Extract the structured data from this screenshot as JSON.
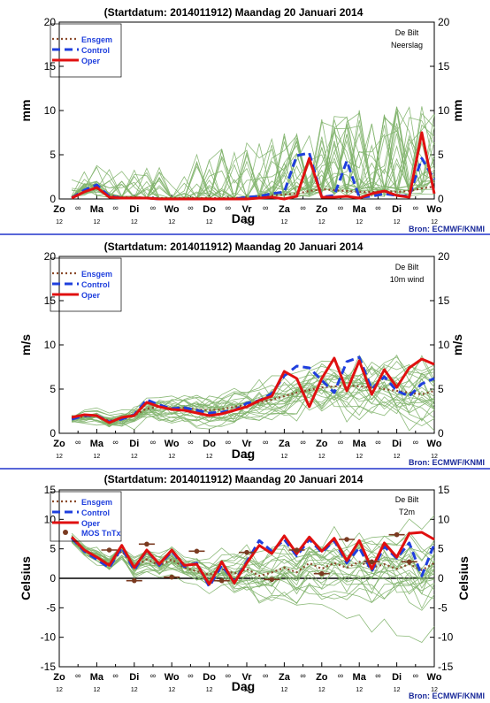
{
  "page": {
    "date_label": "(Startdatum: 2014011912)   Maandag   20 Januari   2014"
  },
  "chart_data": [
    {
      "type": "line",
      "title": "(Startdatum: 2014011912)   Maandag   20 Januari   2014",
      "location": "De Bilt",
      "variable": "Neerslag",
      "ylabel": "mm",
      "xlabel": "Dag",
      "source": "Bron: ECMWF/KNMI",
      "ylim": [
        0,
        20
      ],
      "yticks": [
        0,
        5,
        10,
        15,
        20
      ],
      "xlim": [
        0,
        15
      ],
      "day_labels": [
        "Zo",
        "Ma",
        "Di",
        "Wo",
        "Do",
        "Vr",
        "Za",
        "Zo",
        "Ma",
        "Di",
        "Wo"
      ],
      "hour_labels": [
        "12",
        "12",
        "12",
        "12",
        "12",
        "12",
        "12",
        "12",
        "12",
        "12",
        "12"
      ],
      "x": [
        0.5,
        1,
        1.5,
        2,
        2.5,
        3,
        3.5,
        4,
        4.5,
        5,
        5.5,
        6,
        6.5,
        7,
        7.5,
        8,
        8.5,
        9,
        9.5,
        10,
        10.5,
        11,
        11.5,
        12,
        12.5,
        13,
        13.5,
        14,
        14.5,
        15
      ],
      "legend": [
        "Ensgem",
        "Control",
        "Oper"
      ],
      "colors": {
        "ensgem": "#8b4a2b",
        "control": "#1f3fdd",
        "oper": "#e01010",
        "members": "#7fb36a"
      },
      "series": [
        {
          "name": "Ensgem",
          "values": [
            0.2,
            0.8,
            1.2,
            0.4,
            0.2,
            0.2,
            0.1,
            0.1,
            0.1,
            0.1,
            0.1,
            0.1,
            0.1,
            0.1,
            0.2,
            0.3,
            0.4,
            0.5,
            0.6,
            0.9,
            1.1,
            1.0,
            0.9,
            0.8,
            0.8,
            0.9,
            0.8,
            0.9,
            1.2,
            1.4
          ]
        },
        {
          "name": "Control",
          "values": [
            0.1,
            1.0,
            1.6,
            0.3,
            0.1,
            0.1,
            0.1,
            0.0,
            0.0,
            0.0,
            0.0,
            0.0,
            0.0,
            0.0,
            0.2,
            0.3,
            0.6,
            0.8,
            4.9,
            5.2,
            0.2,
            0.4,
            4.3,
            0.2,
            0.3,
            0.6,
            0.4,
            0.3,
            4.6,
            2.2
          ]
        },
        {
          "name": "Oper",
          "values": [
            0.1,
            0.8,
            1.3,
            0.2,
            0.1,
            0.1,
            0.1,
            0.0,
            0.0,
            0.0,
            0.0,
            0.0,
            0.0,
            0.0,
            0.0,
            0.1,
            0.2,
            0.0,
            0.3,
            4.6,
            0.2,
            0.2,
            0.3,
            0.1,
            0.6,
            0.9,
            0.4,
            0.2,
            7.5,
            0.6
          ]
        }
      ]
    },
    {
      "type": "line",
      "title": "(Startdatum: 2014011912)   Maandag   20 Januari   2014",
      "location": "De Bilt",
      "variable": "10m wind",
      "ylabel": "m/s",
      "xlabel": "Dag",
      "source": "Bron: ECMWF/KNMI",
      "ylim": [
        0,
        20
      ],
      "yticks": [
        0,
        5,
        10,
        15,
        20
      ],
      "xlim": [
        0,
        15
      ],
      "day_labels": [
        "Zo",
        "Ma",
        "Di",
        "Wo",
        "Do",
        "Vr",
        "Za",
        "Zo",
        "Ma",
        "Di",
        "Wo"
      ],
      "hour_labels": [
        "12",
        "12",
        "12",
        "12",
        "12",
        "12",
        "12",
        "12",
        "12",
        "12",
        "12"
      ],
      "x": [
        0.5,
        1,
        1.5,
        2,
        2.5,
        3,
        3.5,
        4,
        4.5,
        5,
        5.5,
        6,
        6.5,
        7,
        7.5,
        8,
        8.5,
        9,
        9.5,
        10,
        10.5,
        11,
        11.5,
        12,
        12.5,
        13,
        13.5,
        14,
        14.5,
        15
      ],
      "legend": [
        "Ensgem",
        "Control",
        "Oper"
      ],
      "colors": {
        "ensgem": "#8b4a2b",
        "control": "#1f3fdd",
        "oper": "#e01010",
        "members": "#7fb36a"
      },
      "series": [
        {
          "name": "Ensgem",
          "values": [
            1.7,
            1.9,
            2.0,
            1.4,
            1.7,
            2.0,
            2.8,
            3.0,
            2.8,
            2.9,
            2.7,
            2.6,
            2.7,
            3.0,
            3.2,
            3.5,
            3.8,
            4.2,
            4.6,
            4.9,
            5.2,
            5.3,
            5.4,
            5.3,
            5.2,
            5.0,
            4.8,
            4.6,
            4.4,
            4.8
          ]
        },
        {
          "name": "Control",
          "values": [
            1.6,
            2.0,
            2.0,
            1.3,
            1.6,
            2.1,
            3.8,
            3.2,
            2.8,
            2.9,
            2.6,
            2.3,
            2.4,
            2.6,
            3.4,
            3.7,
            4.5,
            6.5,
            7.6,
            7.4,
            6.0,
            4.6,
            8.1,
            8.6,
            5.0,
            6.4,
            4.8,
            4.2,
            5.6,
            6.2
          ]
        },
        {
          "name": "Oper",
          "values": [
            1.8,
            2.1,
            2.0,
            1.2,
            1.8,
            2.0,
            3.5,
            3.0,
            2.7,
            2.6,
            2.3,
            2.0,
            2.2,
            2.6,
            3.0,
            3.7,
            4.2,
            7.0,
            6.2,
            3.0,
            6.2,
            8.5,
            4.8,
            8.2,
            4.4,
            7.2,
            5.2,
            7.4,
            8.4,
            7.8
          ]
        }
      ]
    },
    {
      "type": "line",
      "title": "(Startdatum: 2014011912)   Maandag   20 Januari   2014",
      "location": "De Bilt",
      "variable": "T2m",
      "ylabel": "Celsius",
      "xlabel": "Dag",
      "source": "Bron: ECMWF/KNMI",
      "ylim": [
        -15,
        15
      ],
      "yticks": [
        -15,
        -10,
        -5,
        0,
        5,
        10,
        15
      ],
      "xlim": [
        0,
        15
      ],
      "day_labels": [
        "Zo",
        "Ma",
        "Di",
        "Wo",
        "Do",
        "Vr",
        "Za",
        "Zo",
        "Ma",
        "Di",
        "Wo"
      ],
      "hour_labels": [
        "12",
        "12",
        "12",
        "12",
        "12",
        "12",
        "12",
        "12",
        "12",
        "12",
        "12"
      ],
      "x": [
        0.5,
        1,
        1.5,
        2,
        2.5,
        3,
        3.5,
        4,
        4.5,
        5,
        5.5,
        6,
        6.5,
        7,
        7.5,
        8,
        8.5,
        9,
        9.5,
        10,
        10.5,
        11,
        11.5,
        12,
        12.5,
        13,
        13.5,
        14,
        14.5,
        15
      ],
      "legend": [
        "Ensgem",
        "Control",
        "Oper",
        "MOS TnTx"
      ],
      "colors": {
        "ensgem": "#8b4a2b",
        "control": "#1f3fdd",
        "oper": "#e01010",
        "members": "#7fb36a",
        "mos": "#7a3a20"
      },
      "series": [
        {
          "name": "Ensgem",
          "values": [
            6.8,
            4.6,
            3.6,
            2.4,
            4.6,
            2.0,
            3.2,
            2.2,
            3.2,
            1.8,
            1.2,
            0.6,
            1.6,
            0.8,
            1.6,
            0.4,
            1.0,
            1.8,
            1.0,
            2.6,
            1.6,
            2.6,
            1.8,
            2.8,
            1.8,
            2.4,
            1.6,
            2.4,
            1.4,
            2.6
          ]
        },
        {
          "name": "Control",
          "values": [
            6.8,
            4.6,
            3.2,
            1.8,
            5.2,
            1.4,
            4.8,
            2.2,
            4.6,
            2.0,
            2.6,
            -1.4,
            2.2,
            -0.6,
            2.8,
            6.4,
            4.6,
            6.6,
            3.8,
            6.6,
            4.4,
            6.4,
            2.6,
            5.2,
            1.2,
            5.4,
            3.4,
            6.0,
            0.4,
            5.8
          ]
        },
        {
          "name": "Oper",
          "values": [
            7.0,
            4.8,
            3.6,
            2.2,
            5.6,
            1.8,
            4.8,
            2.4,
            4.8,
            2.2,
            2.4,
            -1.0,
            2.8,
            -0.8,
            2.6,
            5.6,
            4.2,
            7.2,
            4.2,
            7.0,
            4.6,
            6.8,
            3.0,
            6.4,
            1.6,
            6.0,
            3.6,
            7.6,
            7.8,
            6.6
          ]
        }
      ],
      "mos_tntx": {
        "name": "MOS TnTx",
        "x": [
          2,
          3,
          3.5,
          4.5,
          5.5,
          6.5,
          7.5,
          8.5,
          9.5,
          10.5,
          11.5,
          12.5,
          13.5,
          14
        ],
        "values": [
          4.8,
          -0.4,
          5.8,
          0.2,
          4.6,
          -0.4,
          4.4,
          -0.2,
          4.8,
          0.8,
          6.6,
          2.8,
          7.4,
          2.8
        ]
      }
    }
  ]
}
